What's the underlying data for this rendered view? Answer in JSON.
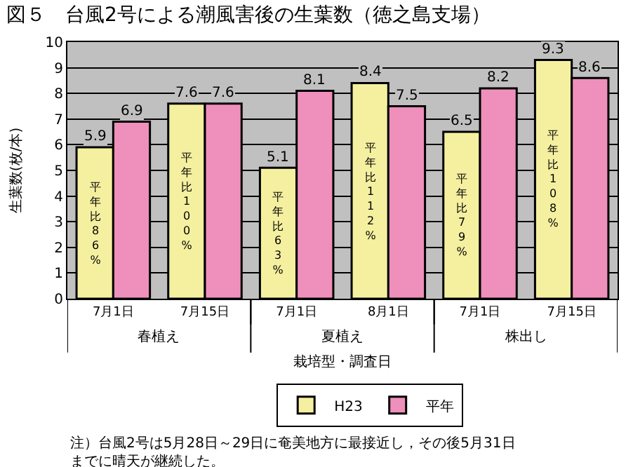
{
  "chart_data": {
    "type": "bar",
    "title": "図５　台風2号による潮風害後の生葉数（徳之島支場）",
    "xlabel": "栽培型・調査日",
    "ylabel": "生葉数(枚/本)",
    "categories": [
      "7月1日",
      "7月15日",
      "7月1日",
      "8月1日",
      "7月1日",
      "7月15日"
    ],
    "series": [
      {
        "name": "H23",
        "color": "#f5f0a0",
        "values": [
          5.9,
          7.6,
          5.1,
          8.4,
          6.5,
          9.3
        ]
      },
      {
        "name": "平年",
        "color": "#ee90bb",
        "values": [
          6.9,
          7.6,
          8.1,
          7.5,
          8.2,
          8.6
        ]
      }
    ],
    "annotations": [
      "春植え",
      "夏植え",
      "株出し",
      "平年比86%",
      "平年比100%",
      "平年比63%",
      "平年比112%",
      "平年比79%",
      "平年比108%",
      "注）台風2号は5月28日～29日に奄美地方に最接近し，その後5月31日までに晴天が継続した。"
    ],
    "ylim": [
      0,
      10
    ],
    "yticks": [
      0,
      1,
      2,
      3,
      4,
      5,
      6,
      7,
      8,
      9,
      10
    ],
    "grid": "y",
    "legend": "bottom",
    "data_labels": true
  }
}
